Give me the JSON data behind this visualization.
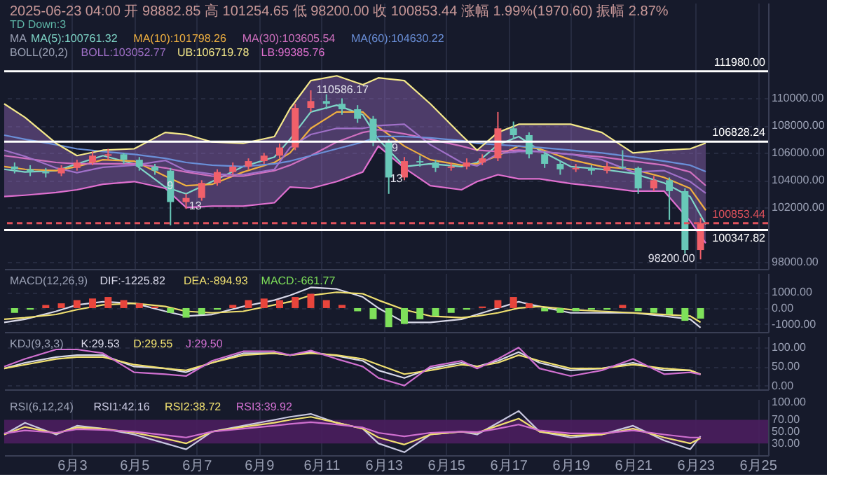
{
  "chart_data": [
    {
      "type": "candlestick",
      "title": "2025-06-23 04:00 开 98882.85 高 101254.65 低 98200.00 收 100853.44 涨幅 1.99%(1970.60) 振幅 2.87%",
      "subtitle": "TD Down:3",
      "xlim": [
        "2025-05-31T20:00",
        "2025-06-25T08:00"
      ],
      "xticks": [
        "2025-06-03",
        "2025-06-05",
        "2025-06-07",
        "2025-06-09",
        "2025-06-11",
        "2025-06-13",
        "2025-06-15",
        "2025-06-17",
        "2025-06-19",
        "2025-06-21",
        "2025-06-23",
        "2025-06-25"
      ],
      "ylim": [
        97500,
        117000
      ],
      "yticks": [
        {
          "value": 98000,
          "label": "98000.00"
        },
        {
          "value": 102000,
          "label": "102000.00"
        },
        {
          "value": 104000,
          "label": "104000.00"
        },
        {
          "value": 106000,
          "label": "106000.00"
        },
        {
          "value": 108000,
          "label": "108000.00"
        },
        {
          "value": 110000,
          "label": "110000.00"
        }
      ],
      "grid": true,
      "tick_labels": "y",
      "annotations": [
        "MA",
        "BOLL(20,2)",
        {
          "text": "110586.17",
          "x": "2025-06-10T16:00",
          "y": 110586.17
        },
        {
          "text": "98200.00",
          "x": "2025-06-23T04:00",
          "y": 98200
        },
        {
          "text": "9",
          "x": "2025-06-05T21:00",
          "y": 103580
        },
        {
          "text": "13",
          "x": "2025-06-06T14:00",
          "y": 102080
        },
        {
          "text": "9",
          "x": "2025-06-13T02:00",
          "y": 106330
        },
        {
          "text": "13",
          "x": "2025-06-13T19:00",
          "y": 104080
        }
      ],
      "ref_lines": [
        {
          "axis": "y",
          "value": 111980,
          "label": "111980.00",
          "color": "#ffffff",
          "line_style": "solid"
        },
        {
          "axis": "y",
          "value": 106828.24,
          "label": "106828.24",
          "color": "#ffffff",
          "line_style": "solid"
        },
        {
          "axis": "y",
          "value": 100853.44,
          "label": "100853.44",
          "color": "#e0525c",
          "line_style": "dashed"
        },
        {
          "axis": "y",
          "value": 100347.82,
          "label": "100347.82",
          "color": "#ffffff",
          "line_style": "solid"
        }
      ],
      "x": [
        "2025-05-31T20:00",
        "2025-06-01T12:00",
        "2025-06-02T12:00",
        "2025-06-03T04:00",
        "2025-06-04T00:00",
        "2025-06-05T00:00",
        "2025-06-06T00:00",
        "2025-06-06T16:00",
        "2025-06-07T12:00",
        "2025-06-08T12:00",
        "2025-06-09T12:00",
        "2025-06-10T00:00",
        "2025-06-10T16:00",
        "2025-06-11T12:00",
        "2025-06-12T08:00",
        "2025-06-12T20:00",
        "2025-06-13T16:00",
        "2025-06-14T12:00",
        "2025-06-15T12:00",
        "2025-06-16T00:00",
        "2025-06-16T16:00",
        "2025-06-17T08:00",
        "2025-06-18T00:00",
        "2025-06-19T00:00",
        "2025-06-20T00:00",
        "2025-06-21T00:00",
        "2025-06-22T00:00",
        "2025-06-22T20:00",
        "2025-06-23T08:00"
      ],
      "series": [
        {
          "type": "line",
          "name": "MA(5):100761.32",
          "color": "#7fd6c8",
          "values": [
            104800,
            104600,
            104700,
            105200,
            105800,
            105200,
            103500,
            103000,
            103900,
            105000,
            105700,
            107000,
            109000,
            109500,
            108800,
            107000,
            105000,
            105200,
            105000,
            105300,
            106600,
            107200,
            106200,
            105000,
            104800,
            104500,
            103800,
            102800,
            100761.32
          ]
        },
        {
          "type": "line",
          "name": "MA(10):101798.26",
          "color": "#f0b040",
          "values": [
            105000,
            104800,
            104700,
            105000,
            105500,
            105400,
            104300,
            103600,
            103700,
            104600,
            105300,
            106000,
            107800,
            109000,
            109000,
            107900,
            106500,
            105500,
            105100,
            105200,
            105800,
            106500,
            106300,
            105500,
            105000,
            104800,
            104200,
            103400,
            101798.26
          ]
        },
        {
          "type": "line",
          "name": "MA(30):103605.54",
          "color": "#d070c0",
          "values": [
            105800,
            105600,
            105300,
            105200,
            105200,
            105200,
            104900,
            104600,
            104300,
            104300,
            104700,
            105100,
            105800,
            106800,
            107500,
            107700,
            107400,
            107000,
            106500,
            106200,
            106100,
            106200,
            106100,
            105900,
            105700,
            105400,
            105100,
            104600,
            103605.54
          ]
        },
        {
          "type": "line",
          "name": "MA(60):104630.22",
          "color": "#6a8fd8",
          "values": [
            107300,
            107000,
            106600,
            106300,
            106100,
            105900,
            105600,
            105300,
            105100,
            105000,
            105200,
            105400,
            105800,
            106300,
            106800,
            107200,
            107200,
            107100,
            106900,
            106700,
            106600,
            106500,
            106400,
            106200,
            106000,
            105700,
            105400,
            105100,
            104630.22
          ]
        },
        {
          "type": "line",
          "name": "BOLL:103052.77",
          "color": "#a070c8",
          "values": [
            106200,
            105750,
            104900,
            104550,
            104950,
            105100,
            105450,
            104700,
            104450,
            104400,
            104800,
            106400,
            107350,
            107800,
            107800,
            108000,
            108100,
            106600,
            105300,
            105050,
            105950,
            106100,
            106100,
            105900,
            105500,
            104600,
            104700,
            103900,
            103052.77
          ],
          "lower": [
            102800,
            102900,
            103100,
            103300,
            103700,
            103900,
            103400,
            102000,
            102100,
            102100,
            102350,
            103500,
            103400,
            103900,
            104600,
            106500,
            104900,
            103600,
            103300,
            103900,
            104400,
            104100,
            104100,
            103750,
            103500,
            103200,
            103200,
            101000,
            99385.76
          ],
          "upper": [
            109600,
            108600,
            106700,
            105800,
            106200,
            106300,
            107500,
            107350,
            106800,
            106700,
            107200,
            109250,
            111300,
            111650,
            111000,
            111500,
            111300,
            109600,
            107300,
            106200,
            107500,
            108100,
            108100,
            108100,
            107500,
            106000,
            106200,
            106300,
            106719.78
          ]
        },
        {
          "type": "line",
          "name": "UB:106719.78",
          "color": "#f5e98a",
          "values": [
            109600,
            108600,
            106700,
            105800,
            106200,
            106300,
            107500,
            107350,
            106800,
            106700,
            107200,
            109250,
            111300,
            111650,
            111000,
            111500,
            111300,
            109600,
            107300,
            106200,
            107500,
            108100,
            108100,
            108100,
            107500,
            106000,
            106200,
            106300,
            106719.78
          ]
        },
        {
          "type": "line",
          "name": "LB:99385.76",
          "color": "#e070d0",
          "values": [
            102800,
            102900,
            103100,
            103300,
            103700,
            103900,
            103400,
            102000,
            102100,
            102100,
            102350,
            103500,
            103400,
            103900,
            104600,
            106500,
            104900,
            103600,
            103300,
            103900,
            104400,
            104100,
            104100,
            103750,
            103500,
            103200,
            103200,
            101000,
            99385.76
          ]
        },
        {
          "type": "candlestick",
          "x": [
            "2025-06-01T04:00",
            "2025-06-01T16:00",
            "2025-06-02T04:00",
            "2025-06-02T16:00",
            "2025-06-03T04:00",
            "2025-06-03T16:00",
            "2025-06-04T04:00",
            "2025-06-04T16:00",
            "2025-06-05T04:00",
            "2025-06-05T16:00",
            "2025-06-06T04:00",
            "2025-06-06T16:00",
            "2025-06-07T04:00",
            "2025-06-07T16:00",
            "2025-06-08T04:00",
            "2025-06-08T16:00",
            "2025-06-09T04:00",
            "2025-06-09T16:00",
            "2025-06-10T04:00",
            "2025-06-10T16:00",
            "2025-06-11T04:00",
            "2025-06-11T16:00",
            "2025-06-12T04:00",
            "2025-06-12T16:00",
            "2025-06-13T04:00",
            "2025-06-13T16:00",
            "2025-06-14T04:00",
            "2025-06-14T16:00",
            "2025-06-15T04:00",
            "2025-06-15T16:00",
            "2025-06-16T04:00",
            "2025-06-16T16:00",
            "2025-06-17T04:00",
            "2025-06-17T16:00",
            "2025-06-18T04:00",
            "2025-06-18T16:00",
            "2025-06-19T04:00",
            "2025-06-19T16:00",
            "2025-06-20T04:00",
            "2025-06-20T16:00",
            "2025-06-21T04:00",
            "2025-06-21T16:00",
            "2025-06-22T04:00",
            "2025-06-22T16:00",
            "2025-06-23T04:00"
          ],
          "ohlc": [
            [
              105000,
              105300,
              104500,
              104800
            ],
            [
              104800,
              105100,
              104300,
              104600
            ],
            [
              104600,
              104900,
              104200,
              104500
            ],
            [
              104500,
              105100,
              104300,
              104900
            ],
            [
              104900,
              105500,
              104700,
              105300
            ],
            [
              105300,
              106100,
              105100,
              105800
            ],
            [
              105800,
              106300,
              105500,
              105900
            ],
            [
              105900,
              106000,
              105200,
              105500
            ],
            [
              105500,
              105700,
              104700,
              105000
            ],
            [
              105000,
              105200,
              104400,
              104700
            ],
            [
              104700,
              104900,
              100700,
              102400
            ],
            [
              102400,
              103000,
              101900,
              102700
            ],
            [
              102700,
              104000,
              102500,
              103800
            ],
            [
              103800,
              104800,
              103600,
              104600
            ],
            [
              104600,
              105300,
              104400,
              105000
            ],
            [
              105000,
              105600,
              104800,
              105400
            ],
            [
              105400,
              106000,
              105200,
              105800
            ],
            [
              105800,
              106700,
              105600,
              106400
            ],
            [
              106400,
              109600,
              106200,
              109300
            ],
            [
              109300,
              110586.17,
              109000,
              109800
            ],
            [
              109800,
              110300,
              109200,
              109600
            ],
            [
              109600,
              110000,
              108800,
              109200
            ],
            [
              109200,
              109500,
              108200,
              108500
            ],
            [
              108500,
              108700,
              106500,
              106800
            ],
            [
              106800,
              107000,
              103000,
              104200
            ],
            [
              104200,
              105700,
              104000,
              105400
            ],
            [
              105400,
              105800,
              105000,
              105300
            ],
            [
              105300,
              105500,
              104600,
              104900
            ],
            [
              104900,
              105300,
              104700,
              105000
            ],
            [
              105000,
              105600,
              104800,
              105300
            ],
            [
              105300,
              105900,
              105100,
              105600
            ],
            [
              105600,
              109000,
              105400,
              107800
            ],
            [
              107800,
              108300,
              107000,
              107300
            ],
            [
              107300,
              107500,
              105600,
              105900
            ],
            [
              105900,
              106100,
              104900,
              105200
            ],
            [
              105200,
              105400,
              104400,
              104800
            ],
            [
              104800,
              105200,
              104600,
              104900
            ],
            [
              104900,
              105100,
              104400,
              104700
            ],
            [
              104700,
              105300,
              104500,
              105000
            ],
            [
              105000,
              106200,
              104800,
              104900
            ],
            [
              104900,
              105000,
              103000,
              103400
            ],
            [
              103400,
              104300,
              103200,
              104000
            ],
            [
              104000,
              104200,
              101100,
              103200
            ],
            [
              103200,
              103400,
              98600,
              98882.85
            ],
            [
              98882.85,
              101254.65,
              98200,
              100853.44
            ]
          ],
          "colors": [
            "#68c8b8",
            "#68c8b8",
            "#68c8b8",
            "#f0606a",
            "#f0606a",
            "#f0606a",
            "#f0606a",
            "#68c8b8",
            "#68c8b8",
            "#68c8b8",
            "#68c8b8",
            "#f0606a",
            "#f0606a",
            "#f0606a",
            "#f0606a",
            "#f0606a",
            "#f0606a",
            "#f0606a",
            "#f0606a",
            "#f0606a",
            "#68c8b8",
            "#68c8b8",
            "#68c8b8",
            "#68c8b8",
            "#68c8b8",
            "#f0606a",
            "#68c8b8",
            "#68c8b8",
            "#f0606a",
            "#f0606a",
            "#f0606a",
            "#f0606a",
            "#68c8b8",
            "#68c8b8",
            "#68c8b8",
            "#68c8b8",
            "#f0606a",
            "#68c8b8",
            "#f0606a",
            "#68c8b8",
            "#68c8b8",
            "#f0606a",
            "#68c8b8",
            "#68c8b8",
            "#f0606a"
          ]
        }
      ]
    },
    {
      "type": "bar",
      "xlim": [
        "2025-05-31T20:00",
        "2025-06-25T08:00"
      ],
      "xticks": [
        "2025-06-03",
        "2025-06-05",
        "2025-06-07",
        "2025-06-09",
        "2025-06-11",
        "2025-06-13",
        "2025-06-15",
        "2025-06-17",
        "2025-06-19",
        "2025-06-21",
        "2025-06-23",
        "2025-06-25"
      ],
      "ylim": [
        -1500,
        2200
      ],
      "yticks": [
        {
          "value": 1000,
          "label": "1000.00"
        },
        {
          "value": 0,
          "label": "0.00"
        },
        {
          "value": -1000,
          "label": "-1000.00"
        }
      ],
      "grid": true,
      "tick_labels": "y",
      "annotations": [
        "MACD(12,26,9)"
      ],
      "x": [
        "2025-05-31T20:00",
        "2025-06-01T12:00",
        "2025-06-02T12:00",
        "2025-06-03T04:00",
        "2025-06-04T00:00",
        "2025-06-05T00:00",
        "2025-06-06T00:00",
        "2025-06-06T16:00",
        "2025-06-07T12:00",
        "2025-06-08T12:00",
        "2025-06-09T12:00",
        "2025-06-10T00:00",
        "2025-06-10T16:00",
        "2025-06-11T12:00",
        "2025-06-12T08:00",
        "2025-06-12T20:00",
        "2025-06-13T16:00",
        "2025-06-14T12:00",
        "2025-06-15T12:00",
        "2025-06-16T00:00",
        "2025-06-16T16:00",
        "2025-06-17T08:00",
        "2025-06-18T00:00",
        "2025-06-19T00:00",
        "2025-06-20T00:00",
        "2025-06-21T00:00",
        "2025-06-22T00:00",
        "2025-06-22T20:00",
        "2025-06-23T04:00"
      ],
      "series": [
        {
          "type": "line",
          "name": "DIF:-1225.82",
          "color": "#d8d8e8",
          "values": [
            -900,
            -700,
            -200,
            200,
            400,
            300,
            -200,
            -500,
            -400,
            100,
            500,
            800,
            1300,
            1200,
            700,
            0,
            -900,
            -900,
            -700,
            -400,
            0,
            400,
            100,
            -300,
            -300,
            -300,
            -500,
            -700,
            -1225.82
          ]
        },
        {
          "type": "line",
          "name": "DEA:-894.93",
          "color": "#f0e070",
          "values": [
            -700,
            -600,
            -400,
            -100,
            200,
            300,
            100,
            -200,
            -300,
            -200,
            200,
            400,
            800,
            1000,
            900,
            500,
            -100,
            -500,
            -600,
            -500,
            -300,
            0,
            100,
            -100,
            -200,
            -300,
            -400,
            -500,
            -894.93
          ]
        },
        {
          "type": "bar",
          "name": "MACD:-661.77",
          "color": "#7ee05a",
          "x": [
            "2025-06-01T04:00",
            "2025-06-01T16:00",
            "2025-06-02T04:00",
            "2025-06-02T16:00",
            "2025-06-03T04:00",
            "2025-06-03T16:00",
            "2025-06-04T04:00",
            "2025-06-04T16:00",
            "2025-06-05T04:00",
            "2025-06-05T16:00",
            "2025-06-06T04:00",
            "2025-06-06T16:00",
            "2025-06-07T04:00",
            "2025-06-07T16:00",
            "2025-06-08T04:00",
            "2025-06-08T16:00",
            "2025-06-09T04:00",
            "2025-06-09T16:00",
            "2025-06-10T04:00",
            "2025-06-10T16:00",
            "2025-06-11T04:00",
            "2025-06-11T16:00",
            "2025-06-12T04:00",
            "2025-06-12T16:00",
            "2025-06-13T04:00",
            "2025-06-13T16:00",
            "2025-06-14T04:00",
            "2025-06-14T16:00",
            "2025-06-15T04:00",
            "2025-06-15T16:00",
            "2025-06-16T04:00",
            "2025-06-16T16:00",
            "2025-06-17T04:00",
            "2025-06-17T16:00",
            "2025-06-18T04:00",
            "2025-06-18T16:00",
            "2025-06-19T04:00",
            "2025-06-19T16:00",
            "2025-06-20T04:00",
            "2025-06-20T16:00",
            "2025-06-21T04:00",
            "2025-06-21T16:00",
            "2025-06-22T04:00",
            "2025-06-22T16:00",
            "2025-06-23T04:00"
          ],
          "values": [
            -300,
            -100,
            200,
            300,
            500,
            600,
            700,
            500,
            300,
            100,
            -300,
            -600,
            -400,
            -100,
            200,
            500,
            600,
            500,
            700,
            900,
            500,
            200,
            -200,
            -700,
            -1200,
            -1000,
            -700,
            -500,
            -300,
            -100,
            100,
            500,
            700,
            300,
            -200,
            -300,
            -200,
            -100,
            -100,
            200,
            -200,
            -300,
            -400,
            -800,
            -661.77
          ],
          "colors": [
            "#7ee05a",
            "#7ee05a",
            "#e8453c",
            "#e8453c",
            "#e8453c",
            "#e8453c",
            "#e8453c",
            "#e8453c",
            "#e8453c",
            "#e8453c",
            "#7ee05a",
            "#7ee05a",
            "#7ee05a",
            "#7ee05a",
            "#e8453c",
            "#e8453c",
            "#e8453c",
            "#e8453c",
            "#e8453c",
            "#e8453c",
            "#e8453c",
            "#e8453c",
            "#7ee05a",
            "#7ee05a",
            "#7ee05a",
            "#7ee05a",
            "#7ee05a",
            "#7ee05a",
            "#7ee05a",
            "#7ee05a",
            "#e8453c",
            "#e8453c",
            "#e8453c",
            "#e8453c",
            "#7ee05a",
            "#7ee05a",
            "#7ee05a",
            "#7ee05a",
            "#7ee05a",
            "#e8453c",
            "#7ee05a",
            "#7ee05a",
            "#7ee05a",
            "#7ee05a",
            "#7ee05a"
          ]
        }
      ]
    },
    {
      "type": "line",
      "xlim": [
        "2025-05-31T20:00",
        "2025-06-25T08:00"
      ],
      "xticks": [
        "2025-06-03",
        "2025-06-05",
        "2025-06-07",
        "2025-06-09",
        "2025-06-11",
        "2025-06-13",
        "2025-06-15",
        "2025-06-17",
        "2025-06-19",
        "2025-06-21",
        "2025-06-23",
        "2025-06-25"
      ],
      "ylim": [
        -10,
        130
      ],
      "yticks": [
        {
          "value": 100,
          "label": "100.00"
        },
        {
          "value": 50,
          "label": "50.00"
        },
        {
          "value": 0,
          "label": "0.00"
        }
      ],
      "grid": true,
      "tick_labels": "y",
      "annotations": [
        "KDJ(9,3,3)"
      ],
      "x": [
        "2025-05-31T20:00",
        "2025-06-01T12:00",
        "2025-06-02T12:00",
        "2025-06-03T04:00",
        "2025-06-04T00:00",
        "2025-06-05T00:00",
        "2025-06-06T00:00",
        "2025-06-06T16:00",
        "2025-06-07T12:00",
        "2025-06-08T12:00",
        "2025-06-09T12:00",
        "2025-06-10T00:00",
        "2025-06-10T16:00",
        "2025-06-11T12:00",
        "2025-06-12T08:00",
        "2025-06-12T20:00",
        "2025-06-13T16:00",
        "2025-06-14T12:00",
        "2025-06-15T12:00",
        "2025-06-16T00:00",
        "2025-06-16T16:00",
        "2025-06-17T08:00",
        "2025-06-18T00:00",
        "2025-06-19T00:00",
        "2025-06-20T00:00",
        "2025-06-21T00:00",
        "2025-06-22T00:00",
        "2025-06-22T20:00",
        "2025-06-23T04:00"
      ],
      "series": [
        {
          "name": "K:29.53",
          "color": "#d8d8e8",
          "values": [
            45,
            60,
            75,
            80,
            80,
            50,
            45,
            35,
            60,
            85,
            85,
            80,
            88,
            78,
            65,
            40,
            20,
            45,
            60,
            50,
            65,
            88,
            60,
            40,
            45,
            60,
            40,
            40,
            29.53
          ]
        },
        {
          "name": "D:29.55",
          "color": "#f0e070",
          "values": [
            45,
            55,
            70,
            75,
            75,
            55,
            45,
            40,
            60,
            80,
            85,
            80,
            85,
            80,
            70,
            55,
            30,
            40,
            55,
            50,
            60,
            80,
            65,
            45,
            45,
            55,
            45,
            40,
            29.55
          ]
        },
        {
          "name": "J:29.50",
          "color": "#d070d0",
          "values": [
            50,
            70,
            95,
            95,
            85,
            35,
            30,
            25,
            65,
            90,
            90,
            80,
            92,
            70,
            50,
            20,
            0,
            50,
            65,
            45,
            70,
            100,
            45,
            25,
            40,
            70,
            30,
            35,
            29.5
          ]
        }
      ]
    },
    {
      "type": "line",
      "xlim": [
        "2025-05-31T20:00",
        "2025-06-25T08:00"
      ],
      "xticks": [
        {
          "value": "2025-06-03",
          "label": "6月3"
        },
        {
          "value": "2025-06-05",
          "label": "6月5"
        },
        {
          "value": "2025-06-07",
          "label": "6月7"
        },
        {
          "value": "2025-06-09",
          "label": "6月9"
        },
        {
          "value": "2025-06-11",
          "label": "6月11"
        },
        {
          "value": "2025-06-13",
          "label": "6月13"
        },
        {
          "value": "2025-06-15",
          "label": "6月15"
        },
        {
          "value": "2025-06-17",
          "label": "6月17"
        },
        {
          "value": "2025-06-19",
          "label": "6月19"
        },
        {
          "value": "2025-06-21",
          "label": "6月21"
        },
        {
          "value": "2025-06-23",
          "label": "6月23"
        },
        {
          "value": "2025-06-25",
          "label": "6月25"
        }
      ],
      "ylim": [
        10,
        105
      ],
      "yticks": [
        {
          "value": 100,
          "label": "100.00"
        },
        {
          "value": 70,
          "label": "70.00"
        },
        {
          "value": 50,
          "label": "50.00"
        },
        {
          "value": 30,
          "label": "30.00"
        }
      ],
      "grid": "x",
      "annotations": [
        "RSI(6,12,24)"
      ],
      "bands": [
        {
          "axis": "y",
          "from": 30,
          "to": 70,
          "color": "#4a1e5e"
        }
      ],
      "x": [
        "2025-05-31T20:00",
        "2025-06-01T12:00",
        "2025-06-02T12:00",
        "2025-06-03T04:00",
        "2025-06-04T00:00",
        "2025-06-05T00:00",
        "2025-06-06T00:00",
        "2025-06-06T16:00",
        "2025-06-07T12:00",
        "2025-06-08T12:00",
        "2025-06-09T12:00",
        "2025-06-10T00:00",
        "2025-06-10T16:00",
        "2025-06-11T12:00",
        "2025-06-12T08:00",
        "2025-06-12T20:00",
        "2025-06-13T16:00",
        "2025-06-14T12:00",
        "2025-06-15T12:00",
        "2025-06-16T00:00",
        "2025-06-16T16:00",
        "2025-06-17T08:00",
        "2025-06-18T00:00",
        "2025-06-19T00:00",
        "2025-06-20T00:00",
        "2025-06-21T00:00",
        "2025-06-22T00:00",
        "2025-06-22T20:00",
        "2025-06-23T04:00"
      ],
      "series": [
        {
          "name": "RSI1:42.16",
          "color": "#c8c8e0",
          "values": [
            45,
            65,
            45,
            60,
            55,
            45,
            30,
            20,
            50,
            60,
            70,
            75,
            80,
            65,
            55,
            30,
            15,
            45,
            50,
            45,
            65,
            85,
            50,
            40,
            45,
            60,
            35,
            20,
            42.16
          ]
        },
        {
          "name": "RSI2:38.72",
          "color": "#f0e070",
          "values": [
            45,
            58,
            47,
            57,
            55,
            48,
            38,
            30,
            50,
            58,
            65,
            70,
            75,
            65,
            55,
            40,
            28,
            45,
            50,
            48,
            60,
            72,
            50,
            43,
            45,
            55,
            40,
            30,
            38.72
          ]
        },
        {
          "name": "RSI3:39.92",
          "color": "#d070d0",
          "values": [
            47,
            52,
            48,
            54,
            53,
            50,
            44,
            40,
            50,
            55,
            60,
            63,
            66,
            62,
            57,
            48,
            42,
            48,
            50,
            49,
            55,
            62,
            52,
            47,
            47,
            52,
            45,
            40,
            39.92
          ]
        }
      ]
    }
  ]
}
